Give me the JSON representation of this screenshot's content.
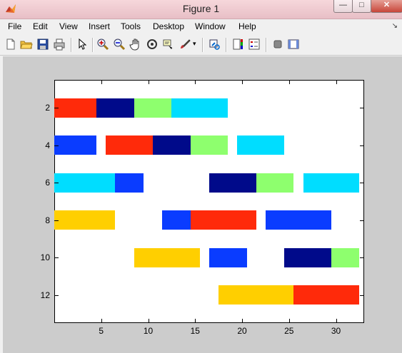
{
  "window": {
    "title": "Figure 1",
    "min_glyph": "—",
    "max_glyph": "□",
    "close_glyph": "✕"
  },
  "menu": [
    "File",
    "Edit",
    "View",
    "Insert",
    "Tools",
    "Desktop",
    "Window",
    "Help"
  ],
  "menu_arrow": "↘",
  "toolbar": [
    "new-figure",
    "open-file",
    "save",
    "print",
    "edit-plot",
    "zoom-in",
    "zoom-out",
    "pan",
    "rotate-3d",
    "data-cursor",
    "brush",
    "link-plot",
    "colorbar",
    "legend",
    "hide-plot-tools",
    "show-plot-tools"
  ],
  "chart_data": {
    "type": "bar",
    "orientation": "horizontal-stacked-segments",
    "xlim": [
      0,
      33
    ],
    "ylim": [
      13.5,
      0.5
    ],
    "xticks": [
      5,
      10,
      15,
      20,
      25,
      30
    ],
    "yticks": [
      2,
      4,
      6,
      8,
      10,
      12
    ],
    "segments": [
      {
        "y": 2,
        "x0": 0,
        "x1": 4.5,
        "color": "#ff2a0a"
      },
      {
        "y": 2,
        "x0": 4.5,
        "x1": 8.5,
        "color": "#000a8a"
      },
      {
        "y": 2,
        "x0": 8.5,
        "x1": 12.5,
        "color": "#8eff6e"
      },
      {
        "y": 2,
        "x0": 12.5,
        "x1": 18.5,
        "color": "#00ddff"
      },
      {
        "y": 4,
        "x0": 0,
        "x1": 4.5,
        "color": "#0a3cff"
      },
      {
        "y": 4,
        "x0": 5.5,
        "x1": 10.5,
        "color": "#ff2a0a"
      },
      {
        "y": 4,
        "x0": 10.5,
        "x1": 14.5,
        "color": "#000a8a"
      },
      {
        "y": 4,
        "x0": 14.5,
        "x1": 18.5,
        "color": "#8eff6e"
      },
      {
        "y": 4,
        "x0": 19.5,
        "x1": 24.5,
        "color": "#00ddff"
      },
      {
        "y": 6,
        "x0": 0,
        "x1": 6.5,
        "color": "#00ddff"
      },
      {
        "y": 6,
        "x0": 6.5,
        "x1": 9.5,
        "color": "#0a3cff"
      },
      {
        "y": 6,
        "x0": 16.5,
        "x1": 21.5,
        "color": "#000a8a"
      },
      {
        "y": 6,
        "x0": 21.5,
        "x1": 25.5,
        "color": "#8eff6e"
      },
      {
        "y": 6,
        "x0": 26.5,
        "x1": 32.5,
        "color": "#00ddff"
      },
      {
        "y": 8,
        "x0": 0,
        "x1": 6.5,
        "color": "#ffcf00"
      },
      {
        "y": 8,
        "x0": 11.5,
        "x1": 14.5,
        "color": "#0a3cff"
      },
      {
        "y": 8,
        "x0": 14.5,
        "x1": 21.5,
        "color": "#ff2a0a"
      },
      {
        "y": 8,
        "x0": 22.5,
        "x1": 29.5,
        "color": "#0a3cff"
      },
      {
        "y": 10,
        "x0": 8.5,
        "x1": 15.5,
        "color": "#ffcf00"
      },
      {
        "y": 10,
        "x0": 16.5,
        "x1": 20.5,
        "color": "#0a3cff"
      },
      {
        "y": 10,
        "x0": 24.5,
        "x1": 29.5,
        "color": "#000a8a"
      },
      {
        "y": 10,
        "x0": 29.5,
        "x1": 32.5,
        "color": "#8eff6e"
      },
      {
        "y": 12,
        "x0": 17.5,
        "x1": 25.5,
        "color": "#ffcf00"
      },
      {
        "y": 12,
        "x0": 25.5,
        "x1": 32.5,
        "color": "#ff2a0a"
      }
    ]
  }
}
